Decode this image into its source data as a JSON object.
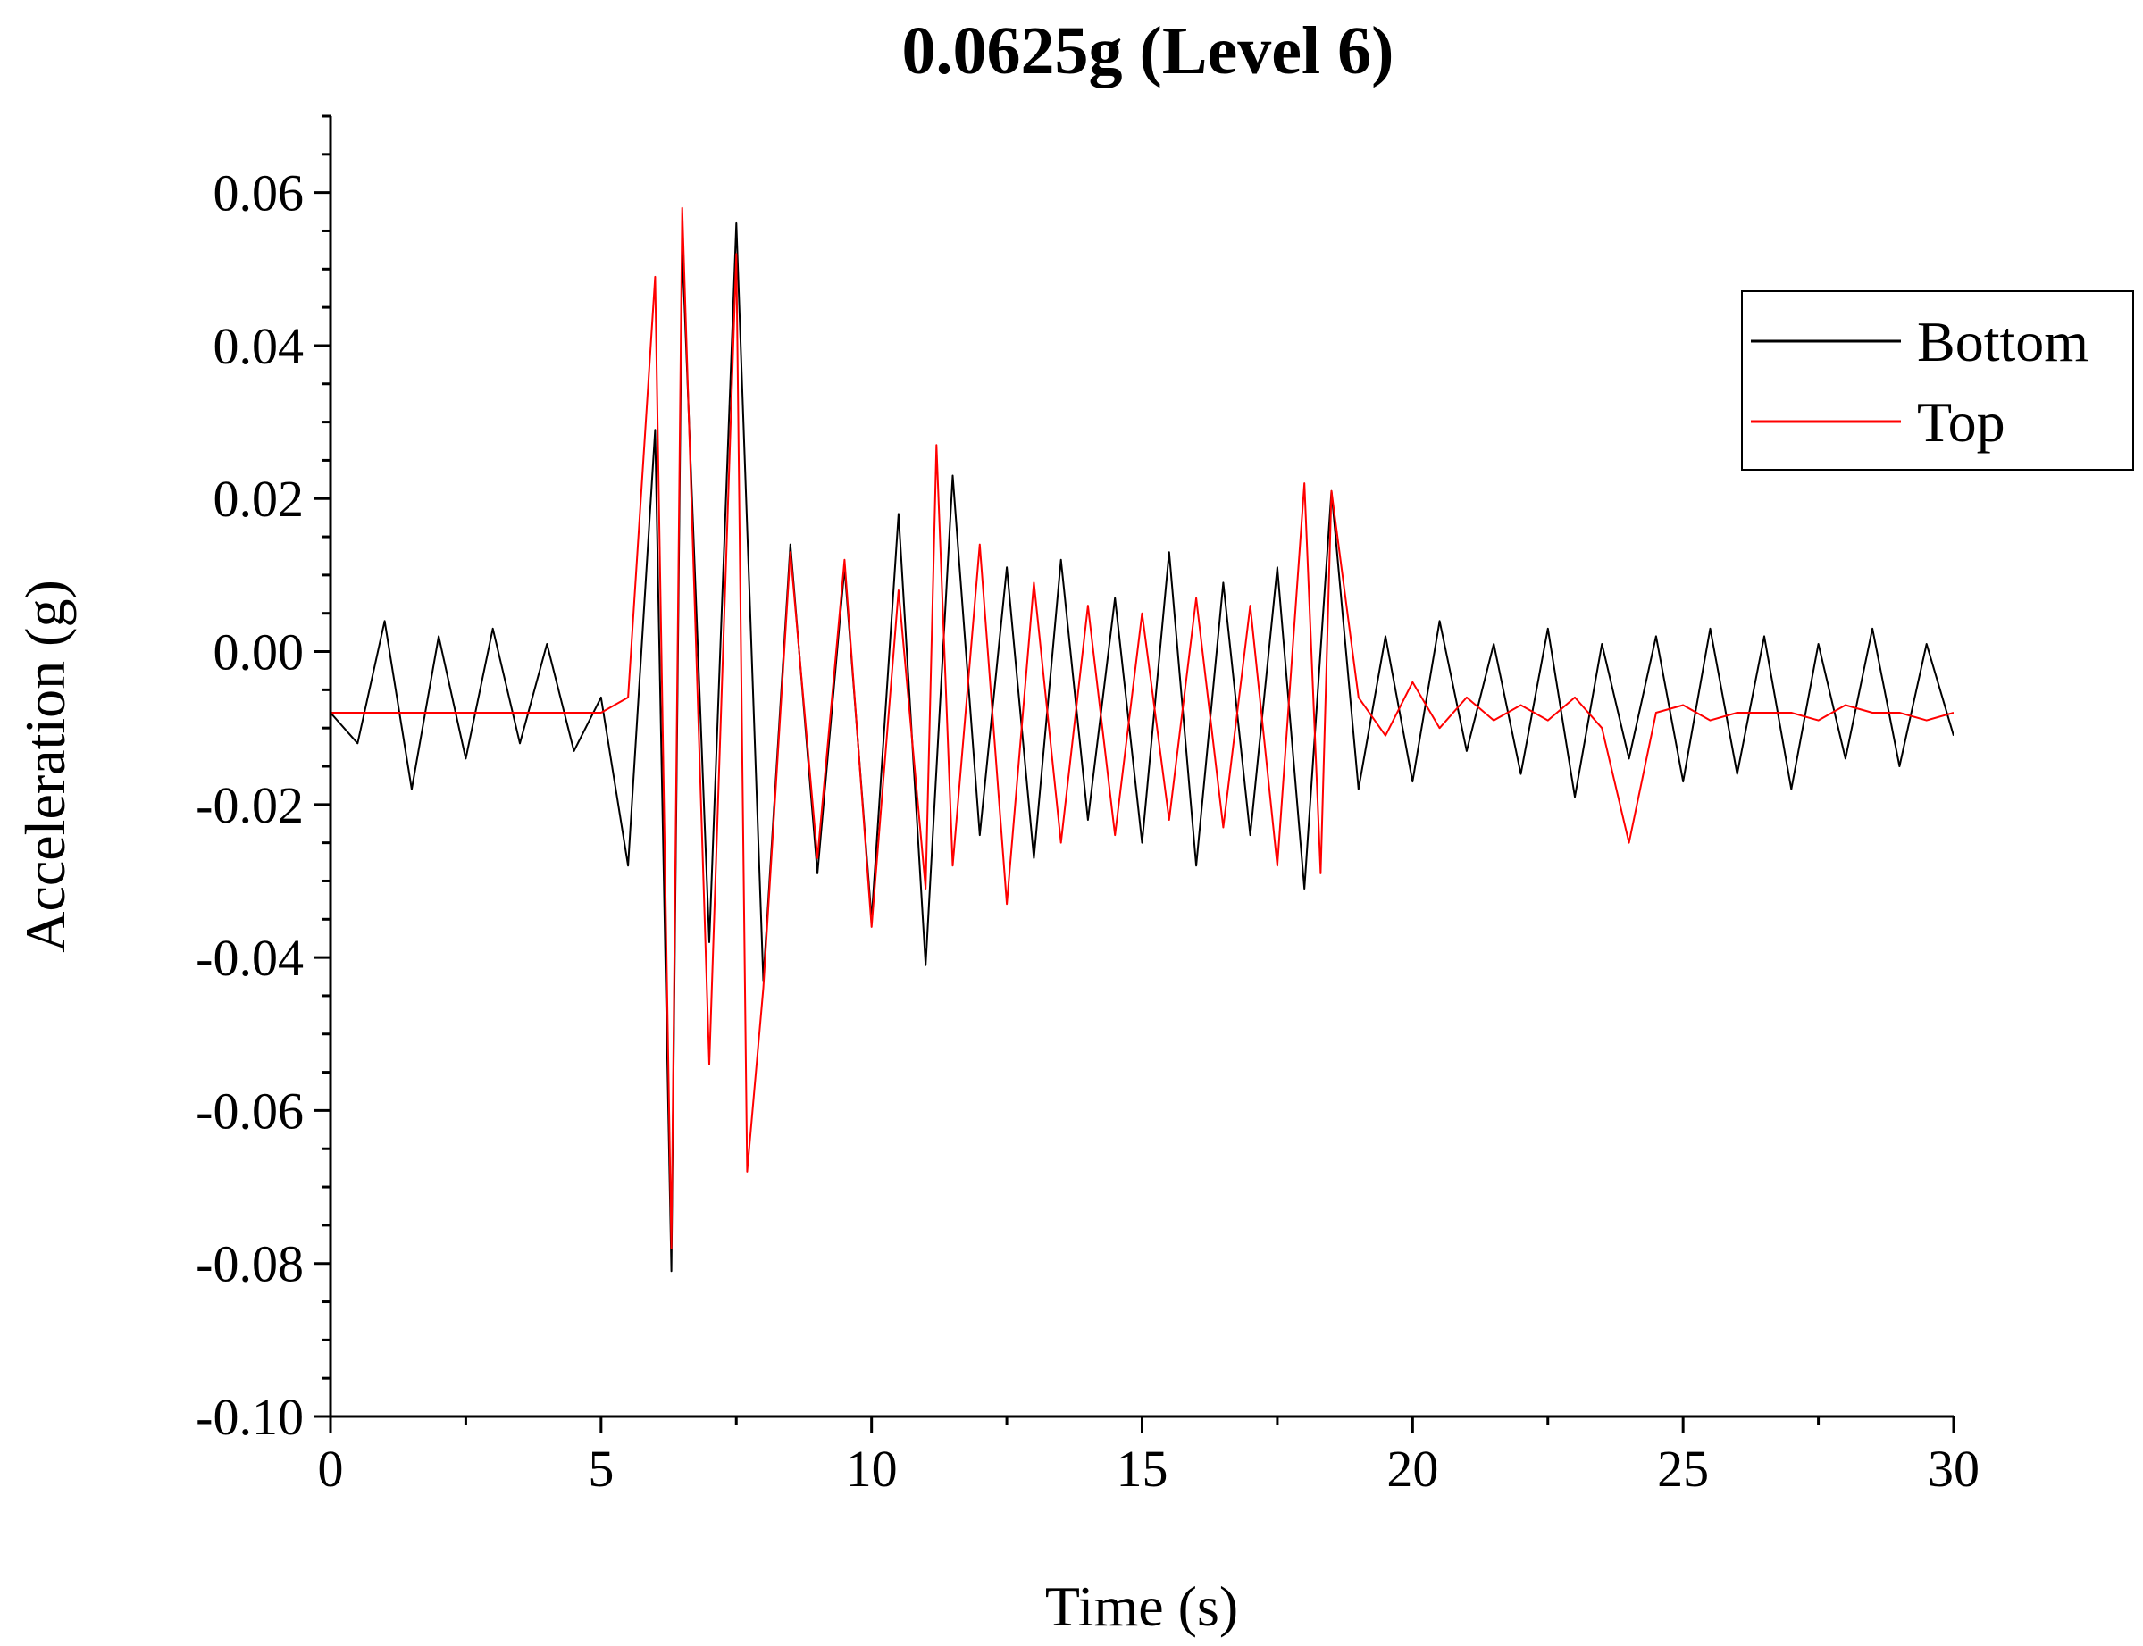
{
  "chart_data": {
    "type": "line",
    "title": "0.0625g (Level 6)",
    "xlabel": "Time (s)",
    "ylabel": "Acceleration (g)",
    "xlim": [
      0,
      30
    ],
    "ylim": [
      -0.1,
      0.07
    ],
    "xticks": [
      "0",
      "5",
      "10",
      "15",
      "20",
      "25",
      "30"
    ],
    "yticks": [
      "-0.10",
      "-0.08",
      "-0.06",
      "-0.04",
      "-0.02",
      "0.00",
      "0.02",
      "0.04",
      "0.06"
    ],
    "grid": false,
    "legend_position": "top-right",
    "series": [
      {
        "name": "Bottom",
        "color": "#000000",
        "x": [
          0,
          0.5,
          1,
          1.5,
          2,
          2.5,
          3,
          3.5,
          4,
          4.5,
          5,
          5.5,
          6,
          6.3,
          6.5,
          7,
          7.5,
          8,
          8.5,
          9,
          9.5,
          10,
          10.5,
          11,
          11.5,
          12,
          12.5,
          13,
          13.5,
          14,
          14.5,
          15,
          15.5,
          16,
          16.5,
          17,
          17.5,
          18,
          18.5,
          19,
          19.5,
          20,
          20.5,
          21,
          21.5,
          22,
          22.5,
          23,
          23.5,
          24,
          24.5,
          25,
          25.5,
          26,
          26.5,
          27,
          27.5,
          28,
          28.5,
          29,
          29.5,
          30
        ],
        "y": [
          -0.008,
          -0.012,
          0.004,
          -0.018,
          0.002,
          -0.014,
          0.003,
          -0.012,
          0.001,
          -0.013,
          -0.006,
          -0.028,
          0.029,
          -0.081,
          0.053,
          -0.038,
          0.056,
          -0.043,
          0.014,
          -0.029,
          0.011,
          -0.035,
          0.018,
          -0.041,
          0.023,
          -0.024,
          0.011,
          -0.027,
          0.012,
          -0.022,
          0.007,
          -0.025,
          0.013,
          -0.028,
          0.009,
          -0.024,
          0.011,
          -0.031,
          0.021,
          -0.018,
          0.002,
          -0.017,
          0.004,
          -0.013,
          0.001,
          -0.016,
          0.003,
          -0.019,
          0.001,
          -0.014,
          0.002,
          -0.017,
          0.003,
          -0.016,
          0.002,
          -0.018,
          0.001,
          -0.014,
          0.003,
          -0.015,
          0.001,
          -0.011
        ]
      },
      {
        "name": "Top",
        "color": "#ff0000",
        "x": [
          0,
          0.5,
          1,
          1.5,
          2,
          2.5,
          3,
          3.5,
          4,
          4.5,
          5,
          5.5,
          6,
          6.3,
          6.5,
          7,
          7.5,
          7.7,
          8,
          8.5,
          9,
          9.5,
          10,
          10.5,
          11,
          11.2,
          11.5,
          12,
          12.5,
          13,
          13.5,
          14,
          14.5,
          15,
          15.5,
          16,
          16.5,
          17,
          17.5,
          18,
          18.3,
          18.5,
          19,
          19.5,
          20,
          20.5,
          21,
          21.5,
          22,
          22.5,
          23,
          23.5,
          24,
          24.5,
          25,
          25.5,
          26,
          26.5,
          27,
          27.5,
          28,
          28.5,
          29,
          29.5,
          30
        ],
        "y": [
          -0.008,
          -0.008,
          -0.008,
          -0.008,
          -0.008,
          -0.008,
          -0.008,
          -0.008,
          -0.008,
          -0.008,
          -0.008,
          -0.006,
          0.049,
          -0.078,
          0.058,
          -0.054,
          0.052,
          -0.068,
          -0.044,
          0.013,
          -0.027,
          0.012,
          -0.036,
          0.008,
          -0.031,
          0.027,
          -0.028,
          0.014,
          -0.033,
          0.009,
          -0.025,
          0.006,
          -0.024,
          0.005,
          -0.022,
          0.007,
          -0.023,
          0.006,
          -0.028,
          0.022,
          -0.029,
          0.021,
          -0.006,
          -0.011,
          -0.004,
          -0.01,
          -0.006,
          -0.009,
          -0.007,
          -0.009,
          -0.006,
          -0.01,
          -0.025,
          -0.008,
          -0.007,
          -0.009,
          -0.008,
          -0.008,
          -0.008,
          -0.009,
          -0.007,
          -0.008,
          -0.008,
          -0.009,
          -0.008
        ]
      }
    ]
  }
}
